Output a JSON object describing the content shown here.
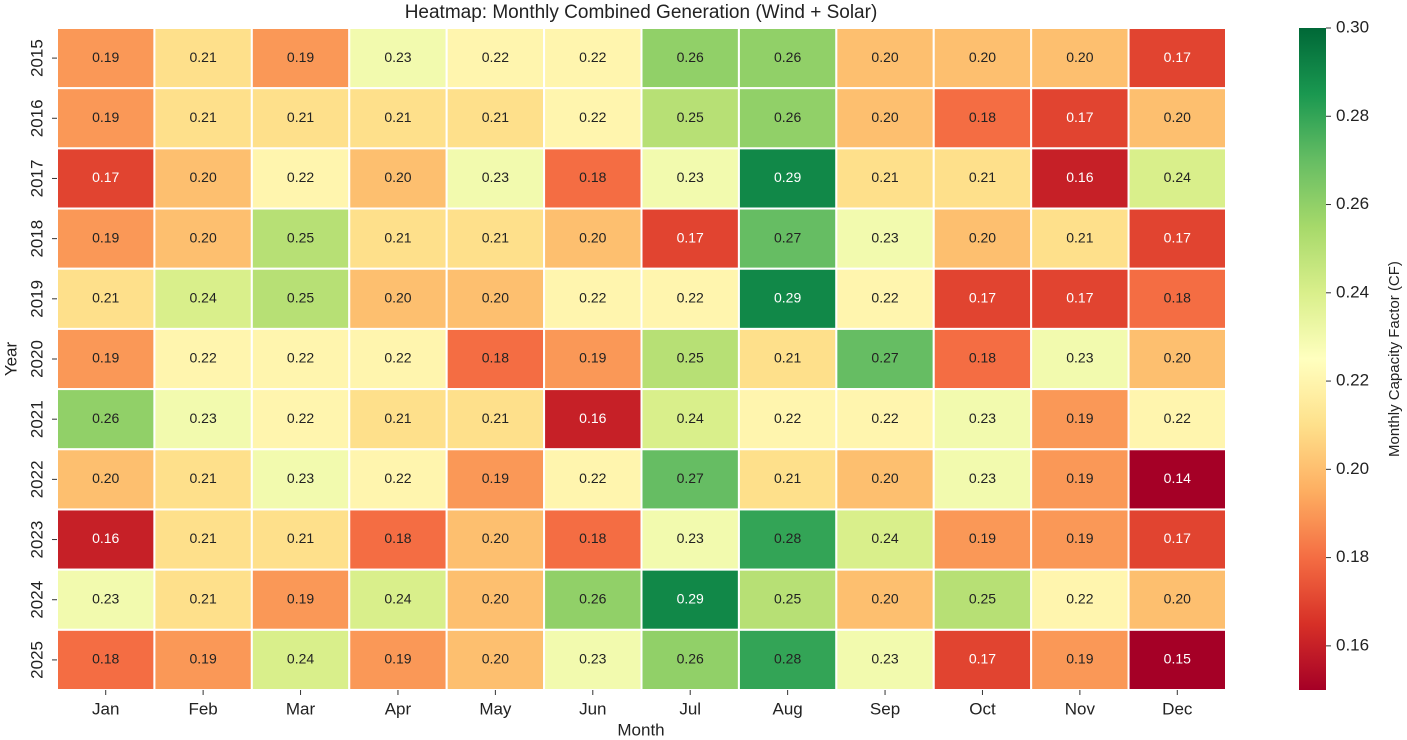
{
  "chart_data": {
    "type": "heatmap",
    "title": "Heatmap: Monthly Combined Generation (Wind + Solar)",
    "xlabel": "Month",
    "ylabel": "Year",
    "x": [
      "Jan",
      "Feb",
      "Mar",
      "Apr",
      "May",
      "Jun",
      "Jul",
      "Aug",
      "Sep",
      "Oct",
      "Nov",
      "Dec"
    ],
    "y": [
      "2015",
      "2016",
      "2017",
      "2018",
      "2019",
      "2020",
      "2021",
      "2022",
      "2023",
      "2024",
      "2025"
    ],
    "values": [
      [
        0.19,
        0.21,
        0.19,
        0.23,
        0.22,
        0.22,
        0.26,
        0.26,
        0.2,
        0.2,
        0.2,
        0.17
      ],
      [
        0.19,
        0.21,
        0.21,
        0.21,
        0.21,
        0.22,
        0.25,
        0.26,
        0.2,
        0.18,
        0.17,
        0.2
      ],
      [
        0.17,
        0.2,
        0.22,
        0.2,
        0.23,
        0.18,
        0.23,
        0.29,
        0.21,
        0.21,
        0.16,
        0.24
      ],
      [
        0.19,
        0.2,
        0.25,
        0.21,
        0.21,
        0.2,
        0.17,
        0.27,
        0.23,
        0.2,
        0.21,
        0.17
      ],
      [
        0.21,
        0.24,
        0.25,
        0.2,
        0.2,
        0.22,
        0.22,
        0.29,
        0.22,
        0.17,
        0.17,
        0.18
      ],
      [
        0.19,
        0.22,
        0.22,
        0.22,
        0.18,
        0.19,
        0.25,
        0.21,
        0.27,
        0.18,
        0.23,
        0.2
      ],
      [
        0.26,
        0.23,
        0.22,
        0.21,
        0.21,
        0.16,
        0.24,
        0.22,
        0.22,
        0.23,
        0.19,
        0.22
      ],
      [
        0.2,
        0.21,
        0.23,
        0.22,
        0.19,
        0.22,
        0.27,
        0.21,
        0.2,
        0.23,
        0.19,
        0.14
      ],
      [
        0.16,
        0.21,
        0.21,
        0.18,
        0.2,
        0.18,
        0.23,
        0.28,
        0.24,
        0.19,
        0.19,
        0.17
      ],
      [
        0.23,
        0.21,
        0.19,
        0.24,
        0.2,
        0.26,
        0.29,
        0.25,
        0.2,
        0.25,
        0.22,
        0.2
      ],
      [
        0.18,
        0.19,
        0.24,
        0.19,
        0.2,
        0.23,
        0.26,
        0.28,
        0.23,
        0.17,
        0.19,
        0.15
      ]
    ],
    "value_labels": [
      [
        "0.19",
        "0.21",
        "0.19",
        "0.23",
        "0.22",
        "0.22",
        "0.26",
        "0.26",
        "0.20",
        "0.20",
        "0.20",
        "0.17"
      ],
      [
        "0.19",
        "0.21",
        "0.21",
        "0.21",
        "0.21",
        "0.22",
        "0.25",
        "0.26",
        "0.20",
        "0.18",
        "0.17",
        "0.20"
      ],
      [
        "0.17",
        "0.20",
        "0.22",
        "0.20",
        "0.23",
        "0.18",
        "0.23",
        "0.29",
        "0.21",
        "0.21",
        "0.16",
        "0.24"
      ],
      [
        "0.19",
        "0.20",
        "0.25",
        "0.21",
        "0.21",
        "0.20",
        "0.17",
        "0.27",
        "0.23",
        "0.20",
        "0.21",
        "0.17"
      ],
      [
        "0.21",
        "0.24",
        "0.25",
        "0.20",
        "0.20",
        "0.22",
        "0.22",
        "0.29",
        "0.22",
        "0.17",
        "0.17",
        "0.18"
      ],
      [
        "0.19",
        "0.22",
        "0.22",
        "0.22",
        "0.18",
        "0.19",
        "0.25",
        "0.21",
        "0.27",
        "0.18",
        "0.23",
        "0.20"
      ],
      [
        "0.26",
        "0.23",
        "0.22",
        "0.21",
        "0.21",
        "0.16",
        "0.24",
        "0.22",
        "0.22",
        "0.23",
        "0.19",
        "0.22"
      ],
      [
        "0.20",
        "0.21",
        "0.23",
        "0.22",
        "0.19",
        "0.22",
        "0.27",
        "0.21",
        "0.20",
        "0.23",
        "0.19",
        "0.14"
      ],
      [
        "0.16",
        "0.21",
        "0.21",
        "0.18",
        "0.20",
        "0.18",
        "0.23",
        "0.28",
        "0.24",
        "0.19",
        "0.19",
        "0.17"
      ],
      [
        "0.23",
        "0.21",
        "0.19",
        "0.24",
        "0.20",
        "0.26",
        "0.29",
        "0.25",
        "0.20",
        "0.25",
        "0.22",
        "0.20"
      ],
      [
        "0.18",
        "0.19",
        "0.24",
        "0.19",
        "0.20",
        "0.23",
        "0.26",
        "0.28",
        "0.23",
        "0.17",
        "0.19",
        "0.15"
      ]
    ],
    "colormap": "RdYlGn",
    "colorbar": {
      "label": "Monthly Capacity Factor (CF)",
      "lim": [
        0.15,
        0.3
      ],
      "ticks": [
        0.16,
        0.18,
        {
          "value": 0.2,
          "label": "0.20"
        },
        0.22,
        0.24,
        0.26,
        0.28,
        {
          "value": 0.3,
          "label": "0.30"
        }
      ]
    }
  }
}
